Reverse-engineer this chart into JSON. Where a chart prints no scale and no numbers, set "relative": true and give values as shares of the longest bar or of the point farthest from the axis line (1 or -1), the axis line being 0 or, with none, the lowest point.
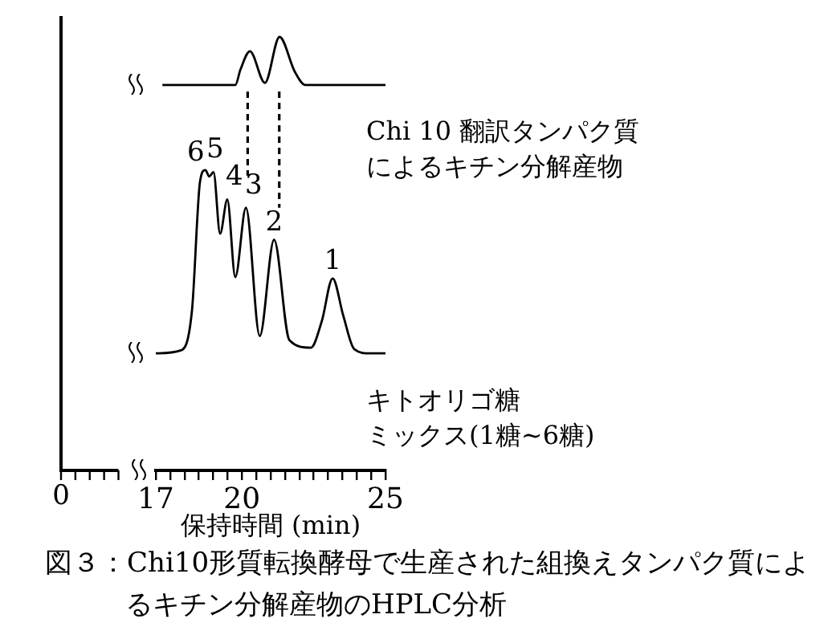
{
  "chart_data": {
    "type": "line",
    "relative": true,
    "title": "図３：Chi10形質転換酵母で生産された組換えタンパク質によるキチン分解産物のHPLC分析",
    "xlabel": "保持時間 (min)",
    "xlim": [
      17,
      25
    ],
    "xticks": [
      17,
      {
        "value": 17.5,
        "label": null
      },
      {
        "value": 18,
        "label": null
      },
      {
        "value": 18.5,
        "label": null
      },
      {
        "value": 19,
        "label": null
      },
      {
        "value": 19.5,
        "label": null
      },
      20,
      {
        "value": 20.5,
        "label": null
      },
      {
        "value": 21,
        "label": null
      },
      {
        "value": 21.5,
        "label": null
      },
      {
        "value": 22,
        "label": null
      },
      {
        "value": 22.5,
        "label": null
      },
      {
        "value": 23,
        "label": null
      },
      {
        "value": 23.5,
        "label": null
      },
      {
        "value": 24,
        "label": null
      },
      {
        "value": 24.5,
        "label": null
      },
      25
    ],
    "series": [
      {
        "name": "Chi 10 翻訳タンパク質によるキチン分解産物",
        "color": "#000000",
        "x": [
          17.23,
          19.77,
          19.95,
          20.28,
          20.8,
          21.31,
          21.84,
          22.21,
          25
        ],
        "values": [
          0.889,
          0.889,
          0.925,
          0.967,
          0.894,
          1,
          0.92,
          0.889,
          0.889
        ]
      },
      {
        "name": "キトオリゴ糖ミックス(1糖~6糖)",
        "color": "#000000",
        "x": [
          17,
          17.88,
          18.26,
          18.54,
          18.73,
          18.86,
          19.01,
          19.24,
          19.49,
          19.77,
          20.14,
          20.62,
          21.12,
          21.65,
          22.4,
          22.78,
          23.16,
          23.53,
          23.91,
          24.47,
          25
        ],
        "values": [
          0.27,
          0.277,
          0.369,
          0.666,
          0.693,
          0.678,
          0.688,
          0.546,
          0.625,
          0.446,
          0.606,
          0.31,
          0.532,
          0.301,
          0.283,
          0.344,
          0.443,
          0.357,
          0.28,
          0.27,
          0.27
        ]
      }
    ],
    "annotations": [
      "0",
      {
        "text": "6",
        "x": 18.73,
        "y": 0.693
      },
      {
        "text": "5",
        "x": 19.01,
        "y": 0.688
      },
      {
        "text": "4",
        "x": 19.49,
        "y": 0.625
      },
      {
        "text": "3",
        "x": 20.14,
        "y": 0.606
      },
      {
        "text": "2",
        "x": 21.12,
        "y": 0.532
      },
      {
        "text": "1",
        "x": 23.16,
        "y": 0.443
      }
    ],
    "ref_lines": [
      {
        "axis": "x",
        "value": 20.2,
        "line_style": "dashed"
      },
      {
        "axis": "x",
        "value": 21.3,
        "line_style": "dashed"
      }
    ]
  }
}
